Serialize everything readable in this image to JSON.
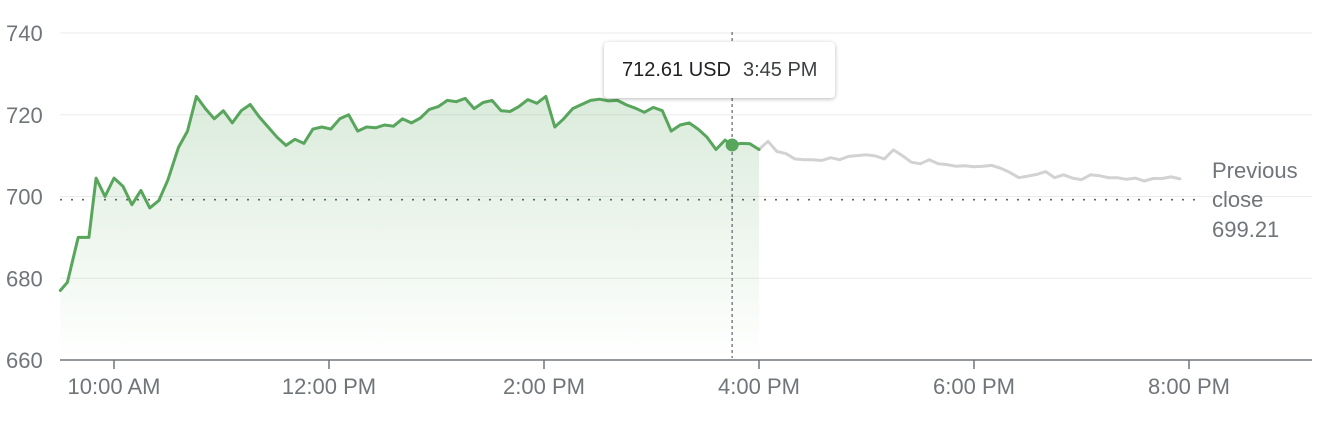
{
  "chart_data": {
    "type": "line",
    "y_ticks": [
      740,
      720,
      700,
      680,
      660
    ],
    "ylim": [
      660,
      742
    ],
    "x_ticks": [
      "10:00 AM",
      "12:00 PM",
      "2:00 PM",
      "4:00 PM",
      "6:00 PM",
      "8:00 PM"
    ],
    "x_range_minutes": [
      570,
      1230
    ],
    "previous_close": {
      "value": 699.21,
      "label_lines": [
        "Previous",
        "close",
        "699.21"
      ]
    },
    "tooltip": {
      "price": "712.61 USD",
      "time": "3:45 PM",
      "x": 945,
      "y": 712.61
    },
    "colors": {
      "regular_session": "#58a55c",
      "after_hours": "#d2d2d2",
      "marker": "#58a55c",
      "axis_text": "#70757a"
    },
    "series": [
      {
        "session": "regular",
        "points": [
          [
            570,
            677
          ],
          [
            574,
            679
          ],
          [
            580,
            690
          ],
          [
            586,
            690
          ],
          [
            590,
            704.5
          ],
          [
            595,
            700
          ],
          [
            600,
            704.5
          ],
          [
            605,
            702.5
          ],
          [
            610,
            698
          ],
          [
            615,
            701.5
          ],
          [
            620,
            697.2
          ],
          [
            625,
            699
          ],
          [
            630,
            704
          ],
          [
            636,
            712
          ],
          [
            641,
            716
          ],
          [
            646,
            724.5
          ],
          [
            651,
            721.5
          ],
          [
            656,
            719
          ],
          [
            661,
            721
          ],
          [
            666,
            718
          ],
          [
            671,
            721
          ],
          [
            676,
            722.5
          ],
          [
            681,
            719.5
          ],
          [
            686,
            717
          ],
          [
            691,
            714.5
          ],
          [
            696,
            712.5
          ],
          [
            701,
            714
          ],
          [
            706,
            713
          ],
          [
            711,
            716.5
          ],
          [
            716,
            717
          ],
          [
            721,
            716.5
          ],
          [
            726,
            719
          ],
          [
            731,
            720
          ],
          [
            736,
            716
          ],
          [
            741,
            717
          ],
          [
            746,
            716.8
          ],
          [
            751,
            717.5
          ],
          [
            756,
            717.2
          ],
          [
            761,
            719
          ],
          [
            766,
            718
          ],
          [
            771,
            719.2
          ],
          [
            776,
            721.3
          ],
          [
            781,
            722
          ],
          [
            786,
            723.5
          ],
          [
            791,
            723.2
          ],
          [
            796,
            724
          ],
          [
            801,
            721.5
          ],
          [
            806,
            723
          ],
          [
            811,
            723.5
          ],
          [
            816,
            721
          ],
          [
            821,
            720.8
          ],
          [
            826,
            722
          ],
          [
            831,
            723.7
          ],
          [
            836,
            722.8
          ],
          [
            841,
            724.5
          ],
          [
            846,
            717
          ],
          [
            851,
            719
          ],
          [
            856,
            721.5
          ],
          [
            861,
            722.5
          ],
          [
            866,
            723.5
          ],
          [
            871,
            723.8
          ],
          [
            876,
            723.4
          ],
          [
            881,
            723.5
          ],
          [
            886,
            722.4
          ],
          [
            891,
            721.6
          ],
          [
            896,
            720.6
          ],
          [
            901,
            721.8
          ],
          [
            906,
            721
          ],
          [
            911,
            716
          ],
          [
            916,
            717.5
          ],
          [
            921,
            718
          ],
          [
            926,
            716.5
          ],
          [
            931,
            714.5
          ],
          [
            936,
            711.5
          ],
          [
            941,
            713.8
          ],
          [
            945,
            712.61
          ],
          [
            950,
            713
          ],
          [
            955,
            712.9
          ],
          [
            960,
            711.5
          ]
        ]
      },
      {
        "session": "after_hours",
        "points": [
          [
            960,
            711.5
          ],
          [
            965,
            713.5
          ],
          [
            970,
            711
          ],
          [
            975,
            710.5
          ],
          [
            980,
            709.2
          ],
          [
            985,
            709
          ],
          [
            990,
            709
          ],
          [
            995,
            708.8
          ],
          [
            1000,
            709.5
          ],
          [
            1005,
            709
          ],
          [
            1010,
            709.8
          ],
          [
            1015,
            710
          ],
          [
            1020,
            710.2
          ],
          [
            1025,
            709.9
          ],
          [
            1030,
            709.2
          ],
          [
            1035,
            711.4
          ],
          [
            1040,
            710
          ],
          [
            1045,
            708.4
          ],
          [
            1050,
            708
          ],
          [
            1055,
            709
          ],
          [
            1060,
            708
          ],
          [
            1065,
            707.8
          ],
          [
            1070,
            707.4
          ],
          [
            1075,
            707.5
          ],
          [
            1080,
            707.3
          ],
          [
            1085,
            707.4
          ],
          [
            1090,
            707.6
          ],
          [
            1095,
            706.9
          ],
          [
            1100,
            705.9
          ],
          [
            1105,
            704.6
          ],
          [
            1110,
            705
          ],
          [
            1115,
            705.4
          ],
          [
            1120,
            706.1
          ],
          [
            1125,
            704.6
          ],
          [
            1130,
            705.3
          ],
          [
            1135,
            704.5
          ],
          [
            1140,
            704.1
          ],
          [
            1145,
            705.3
          ],
          [
            1150,
            705.1
          ],
          [
            1155,
            704.6
          ],
          [
            1160,
            704.6
          ],
          [
            1165,
            704.2
          ],
          [
            1170,
            704.5
          ],
          [
            1175,
            703.8
          ],
          [
            1180,
            704.4
          ],
          [
            1185,
            704.4
          ],
          [
            1190,
            704.8
          ],
          [
            1195,
            704.3
          ]
        ]
      }
    ]
  }
}
